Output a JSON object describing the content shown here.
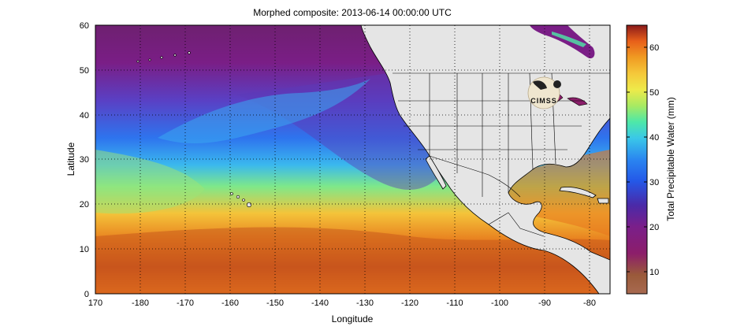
{
  "title": "Morphed composite: 2013-06-14 00:00:00 UTC",
  "map": {
    "xlabel": "Longitude",
    "ylabel": "Latitude",
    "xlim": [
      170,
      285
    ],
    "ylim": [
      0,
      60
    ],
    "x_ticks": [
      "170",
      "-180",
      "-170",
      "-160",
      "-150",
      "-140",
      "-130",
      "-120",
      "-110",
      "-100",
      "-90",
      "-80"
    ],
    "y_ticks": [
      "0",
      "10",
      "20",
      "30",
      "40",
      "50",
      "60"
    ],
    "grid": "dotted",
    "land_color": "#e5e5e5",
    "logo_text": "CIMSS"
  },
  "colorbar": {
    "label": "Total Precipitable Water (mm)",
    "ticks": [
      "10",
      "20",
      "30",
      "40",
      "50",
      "60"
    ],
    "range": [
      5,
      65
    ],
    "colors": [
      "#a86a50",
      "#c9622a",
      "#e8601a",
      "#f09b22",
      "#f5c83a",
      "#eeea4a",
      "#a8ea62",
      "#4ee8a8",
      "#3ac8e8",
      "#2a86f0",
      "#2458e8",
      "#4a2aa8",
      "#7a1f8a",
      "#8c1e6a",
      "#8b1a1a"
    ]
  }
}
